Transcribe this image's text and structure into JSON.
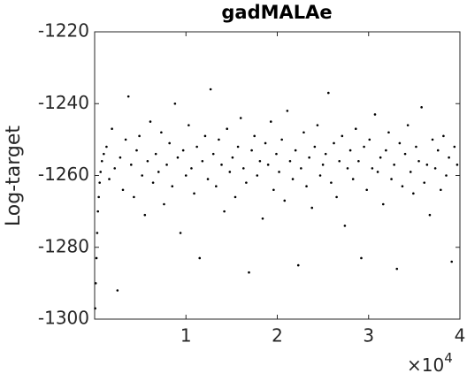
{
  "chart_data": {
    "type": "scatter",
    "title": "gadMALAe",
    "y_label": "Log-target",
    "x_multiplier": "×10",
    "x_exponent": "4",
    "color": "#000000",
    "xlim": [
      0,
      40000
    ],
    "xticks": [
      {
        "value": 10000,
        "label": "1"
      },
      {
        "value": 20000,
        "label": "2"
      },
      {
        "value": 30000,
        "label": "3"
      },
      {
        "value": 40000,
        "label": "4"
      }
    ],
    "ylim": [
      -1300,
      -1220
    ],
    "yticks": [
      -1300,
      -1280,
      -1260,
      -1240,
      -1220
    ],
    "x": [
      60,
      120,
      200,
      280,
      360,
      450,
      550,
      650,
      800,
      1000,
      1300,
      1600,
      1900,
      2200,
      2500,
      2800,
      3100,
      3400,
      3700,
      4000,
      4300,
      4600,
      4900,
      5200,
      5500,
      5800,
      6100,
      6400,
      6700,
      7000,
      7300,
      7600,
      7900,
      8200,
      8500,
      8800,
      9100,
      9400,
      9700,
      10000,
      10300,
      10600,
      10900,
      11200,
      11500,
      11800,
      12100,
      12400,
      12700,
      13000,
      13300,
      13600,
      13900,
      14200,
      14500,
      14800,
      15100,
      15400,
      15700,
      16000,
      16300,
      16600,
      16900,
      17200,
      17500,
      17800,
      18100,
      18400,
      18700,
      19000,
      19300,
      19600,
      19900,
      20200,
      20500,
      20800,
      21100,
      21400,
      21700,
      22000,
      22300,
      22600,
      22900,
      23200,
      23500,
      23800,
      24100,
      24400,
      24700,
      25000,
      25300,
      25600,
      25900,
      26200,
      26500,
      26800,
      27100,
      27400,
      27700,
      28000,
      28300,
      28600,
      28900,
      29200,
      29500,
      29800,
      30100,
      30400,
      30700,
      31000,
      31300,
      31600,
      31900,
      32200,
      32500,
      32800,
      33100,
      33400,
      33700,
      34000,
      34300,
      34600,
      34900,
      35200,
      35500,
      35800,
      36100,
      36400,
      36700,
      37000,
      37300,
      37600,
      37900,
      38200,
      38500,
      38800,
      39100,
      39400,
      39700
    ],
    "values": [
      -1297,
      -1290,
      -1283,
      -1276,
      -1270,
      -1266,
      -1262,
      -1259,
      -1256,
      -1254,
      -1252,
      -1261,
      -1247,
      -1258,
      -1292,
      -1255,
      -1264,
      -1250,
      -1238,
      -1257,
      -1266,
      -1253,
      -1249,
      -1260,
      -1271,
      -1256,
      -1245,
      -1262,
      -1254,
      -1259,
      -1248,
      -1268,
      -1257,
      -1251,
      -1263,
      -1240,
      -1255,
      -1276,
      -1253,
      -1260,
      -1246,
      -1258,
      -1265,
      -1252,
      -1283,
      -1256,
      -1249,
      -1261,
      -1236,
      -1254,
      -1263,
      -1250,
      -1257,
      -1270,
      -1247,
      -1259,
      -1255,
      -1266,
      -1252,
      -1244,
      -1258,
      -1262,
      -1287,
      -1253,
      -1249,
      -1260,
      -1256,
      -1272,
      -1251,
      -1257,
      -1245,
      -1264,
      -1254,
      -1259,
      -1250,
      -1267,
      -1242,
      -1256,
      -1261,
      -1253,
      -1285,
      -1258,
      -1248,
      -1263,
      -1255,
      -1269,
      -1252,
      -1246,
      -1260,
      -1257,
      -1254,
      -1237,
      -1262,
      -1251,
      -1266,
      -1256,
      -1249,
      -1274,
      -1258,
      -1253,
      -1261,
      -1247,
      -1256,
      -1283,
      -1252,
      -1264,
      -1250,
      -1258,
      -1243,
      -1259,
      -1255,
      -1268,
      -1253,
      -1248,
      -1261,
      -1257,
      -1286,
      -1251,
      -1263,
      -1254,
      -1246,
      -1259,
      -1265,
      -1252,
      -1256,
      -1241,
      -1262,
      -1257,
      -1271,
      -1250,
      -1258,
      -1253,
      -1264,
      -1249,
      -1260,
      -1255,
      -1284,
      -1252,
      -1257
    ]
  }
}
